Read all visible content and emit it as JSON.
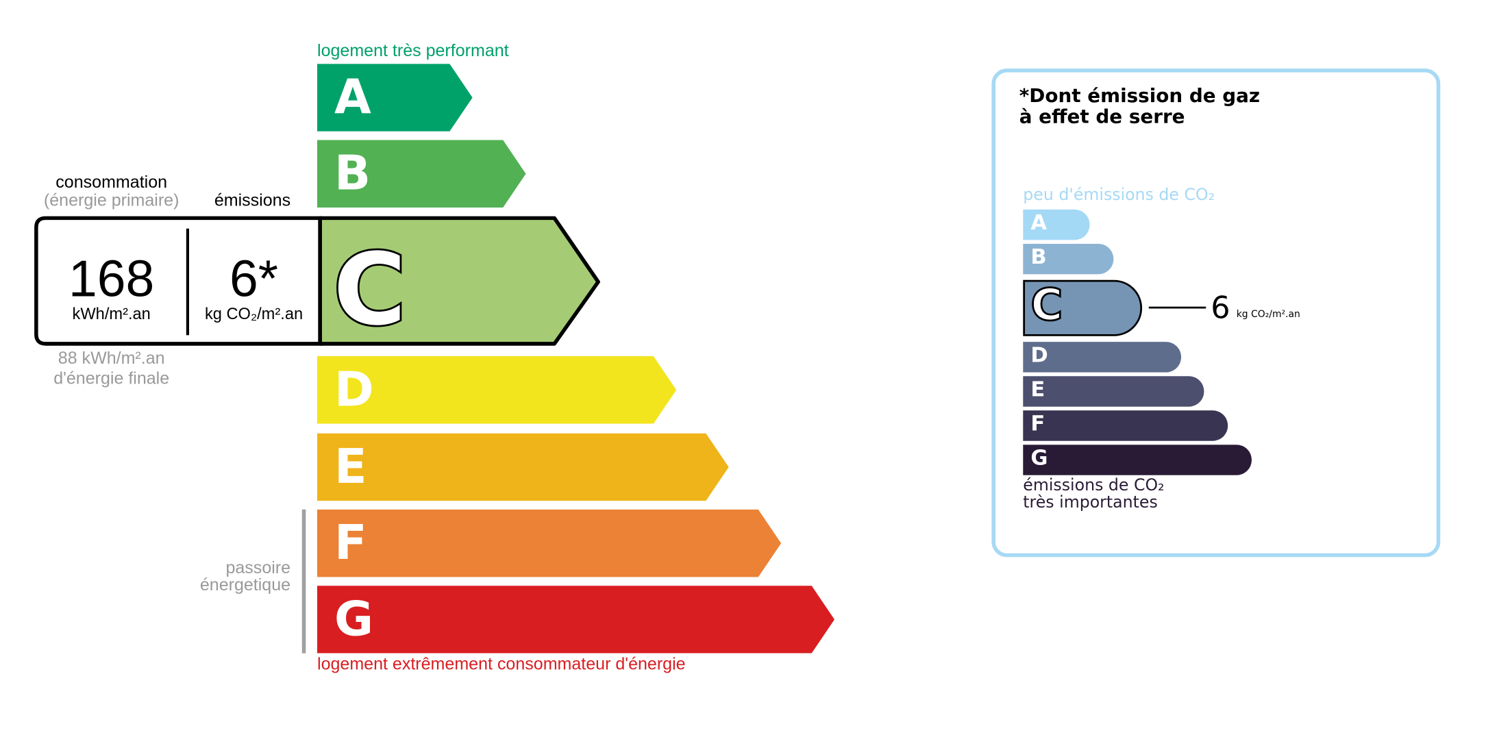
{
  "energy": {
    "top_label": "logement très performant",
    "bottom_label": "logement extrêmement consommateur d'énergie",
    "passoire_label": [
      "passoire",
      "énergetique"
    ],
    "classes": [
      {
        "letter": "A",
        "color": "#00a26a"
      },
      {
        "letter": "B",
        "color": "#51b153"
      },
      {
        "letter": "C",
        "color": "#a5cc74"
      },
      {
        "letter": "D",
        "color": "#f2e51d"
      },
      {
        "letter": "E",
        "color": "#efb41a"
      },
      {
        "letter": "F",
        "color": "#eb8235"
      },
      {
        "letter": "G",
        "color": "#d81e21"
      }
    ],
    "current_class": "C",
    "consumption_header": "consommation",
    "consumption_subheader": "(énergie primaire)",
    "emissions_header": "émissions",
    "consumption_value": "168",
    "consumption_unit": "kWh/m².an",
    "emissions_value": "6*",
    "emissions_unit": "kg CO₂/m².an",
    "final_energy_value": "88 kWh/m².an",
    "final_energy_label": "d'énergie finale"
  },
  "ges": {
    "title_line1": "*Dont émission de gaz",
    "title_line2": "à effet de serre",
    "top_label": "peu d'émissions de CO₂",
    "bottom_label_line1": "émissions de CO₂",
    "bottom_label_line2": "très importantes",
    "border_color": "#a6d9f5",
    "classes": [
      {
        "letter": "A",
        "color": "#a4d9f6"
      },
      {
        "letter": "B",
        "color": "#8db3d3"
      },
      {
        "letter": "C",
        "color": "#7695b5"
      },
      {
        "letter": "D",
        "color": "#5f6d8d"
      },
      {
        "letter": "E",
        "color": "#4c4f6e"
      },
      {
        "letter": "F",
        "color": "#383451"
      },
      {
        "letter": "G",
        "color": "#291b35"
      }
    ],
    "current_class": "C",
    "value": "6",
    "unit": "kg CO₂/m².an"
  }
}
